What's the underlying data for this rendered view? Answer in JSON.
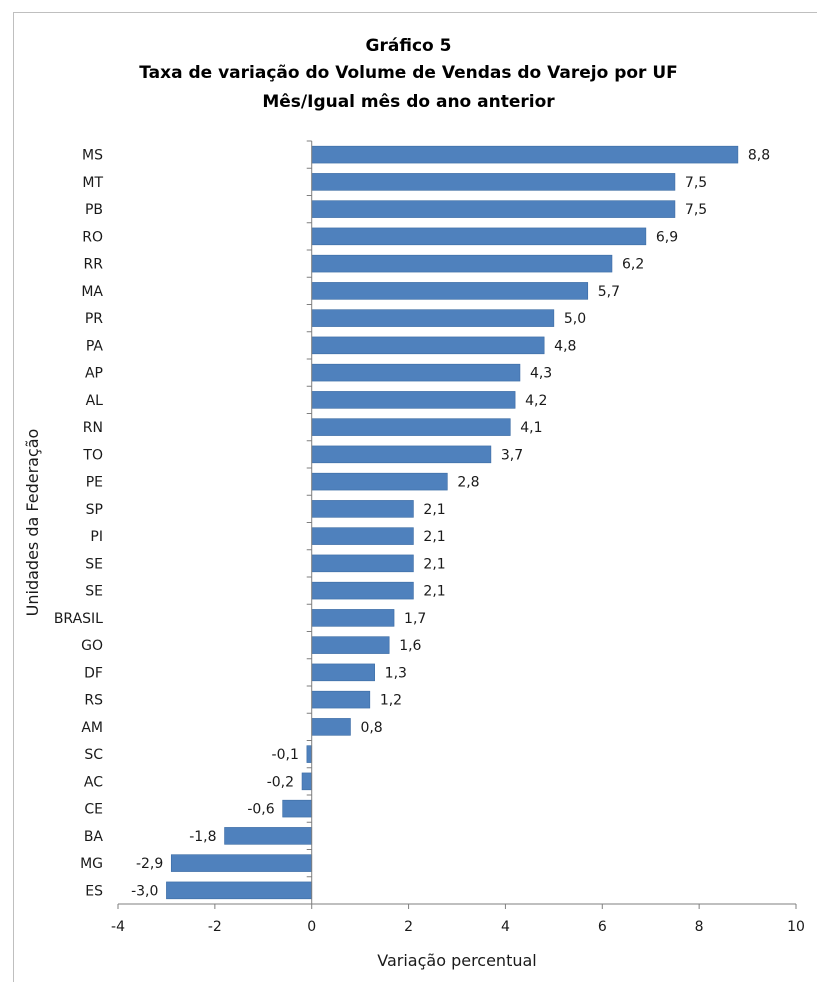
{
  "chart_data": {
    "type": "bar",
    "orientation": "horizontal",
    "title": [
      "Gráfico 5",
      "Taxa de variação do Volume de Vendas do Varejo por UF",
      "Mês/Igual mês do ano anterior"
    ],
    "xlabel": "Variação percentual",
    "ylabel": "Unidades da Federação",
    "xlim": [
      -4,
      10
    ],
    "xticks": [
      -4,
      -2,
      0,
      2,
      4,
      6,
      8,
      10
    ],
    "grid": false,
    "bar_color": "#4f81bd",
    "categories": [
      "MS",
      "MT",
      "PB",
      "RO",
      "RR",
      "MA",
      "PR",
      "PA",
      "AP",
      "AL",
      "RN",
      "TO",
      "PE",
      "SP",
      "PI",
      "SE",
      "SE",
      "BRASIL",
      "GO",
      "DF",
      "RS",
      "AM",
      "SC",
      "AC",
      "CE",
      "BA",
      "MG",
      "ES"
    ],
    "values": [
      8.8,
      7.5,
      7.5,
      6.9,
      6.2,
      5.7,
      5.0,
      4.8,
      4.3,
      4.2,
      4.1,
      3.7,
      2.8,
      2.1,
      2.1,
      2.1,
      2.1,
      1.7,
      1.6,
      1.3,
      1.2,
      0.8,
      -0.1,
      -0.2,
      -0.6,
      -1.8,
      -2.9,
      -3.0
    ],
    "labels": [
      "8,8",
      "7,5",
      "7,5",
      "6,9",
      "6,2",
      "5,7",
      "5,0",
      "4,8",
      "4,3",
      "4,2",
      "4,1",
      "3,7",
      "2,8",
      "2,1",
      "2,1",
      "2,1",
      "2,1",
      "1,7",
      "1,6",
      "1,3",
      "1,2",
      "0,8",
      "-0,1",
      "-0,2",
      "-0,6",
      "-1,8",
      "-2,9",
      "-3,0"
    ]
  }
}
